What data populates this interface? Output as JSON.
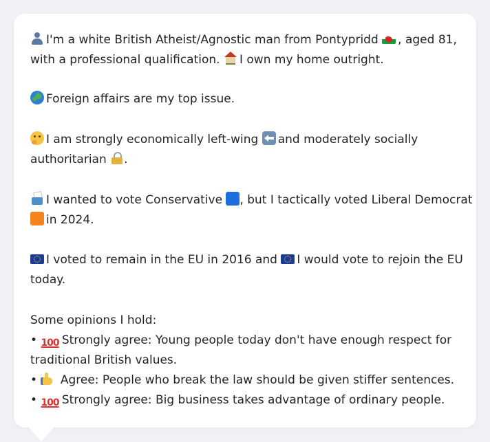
{
  "profile": {
    "intro_line1": "I'm a white British Atheist/Agnostic man from Pontypridd",
    "intro_line1_end": ", aged 81,",
    "intro_line2": "with a professional qualification.",
    "intro_line2_end": "I own my home outright.",
    "top_issue": "Foreign affairs are my top issue.",
    "ideology_line1": "I am strongly economically left-wing",
    "ideology_line1_end": "and moderately socially",
    "ideology_line2": "authoritarian",
    "ideology_line2_end": ".",
    "vote_line1": "I wanted to vote Conservative",
    "vote_line1_end": ", but I tactically voted Liberal Democrat",
    "vote_line2_end": "in 2024.",
    "eu_line1": "I voted to remain in the EU in 2016 and",
    "eu_line1_end": "I would vote to rejoin the EU",
    "eu_line2": "today.",
    "opinions_heading": "Some opinions I hold:",
    "opinion1_line1": "Strongly agree: Young people today don't have enough respect for",
    "opinion1_line2": "traditional British values.",
    "opinion2": "Agree: People who break the law should be given stiffer sentences.",
    "opinion3": "Strongly agree: Big business takes advantage of ordinary people.",
    "bullet": "•",
    "hundred": "100"
  },
  "icons": {
    "person": "person-icon",
    "welsh_flag": "welsh-flag-icon",
    "house": "house-icon",
    "globe": "globe-icon",
    "thinking_face": "thinking-face-icon",
    "left_arrow": "left-arrow-icon",
    "lock": "lock-icon",
    "ballot_box": "ballot-box-icon",
    "blue_square": "blue-square-icon",
    "orange_square": "orange-square-icon",
    "eu_flag": "eu-flag-icon",
    "hundred": "hundred-icon",
    "thumbs_up": "thumbs-up-icon"
  },
  "colors": {
    "background": "#f0f1f4",
    "card": "#ffffff",
    "text": "#1f2328"
  }
}
